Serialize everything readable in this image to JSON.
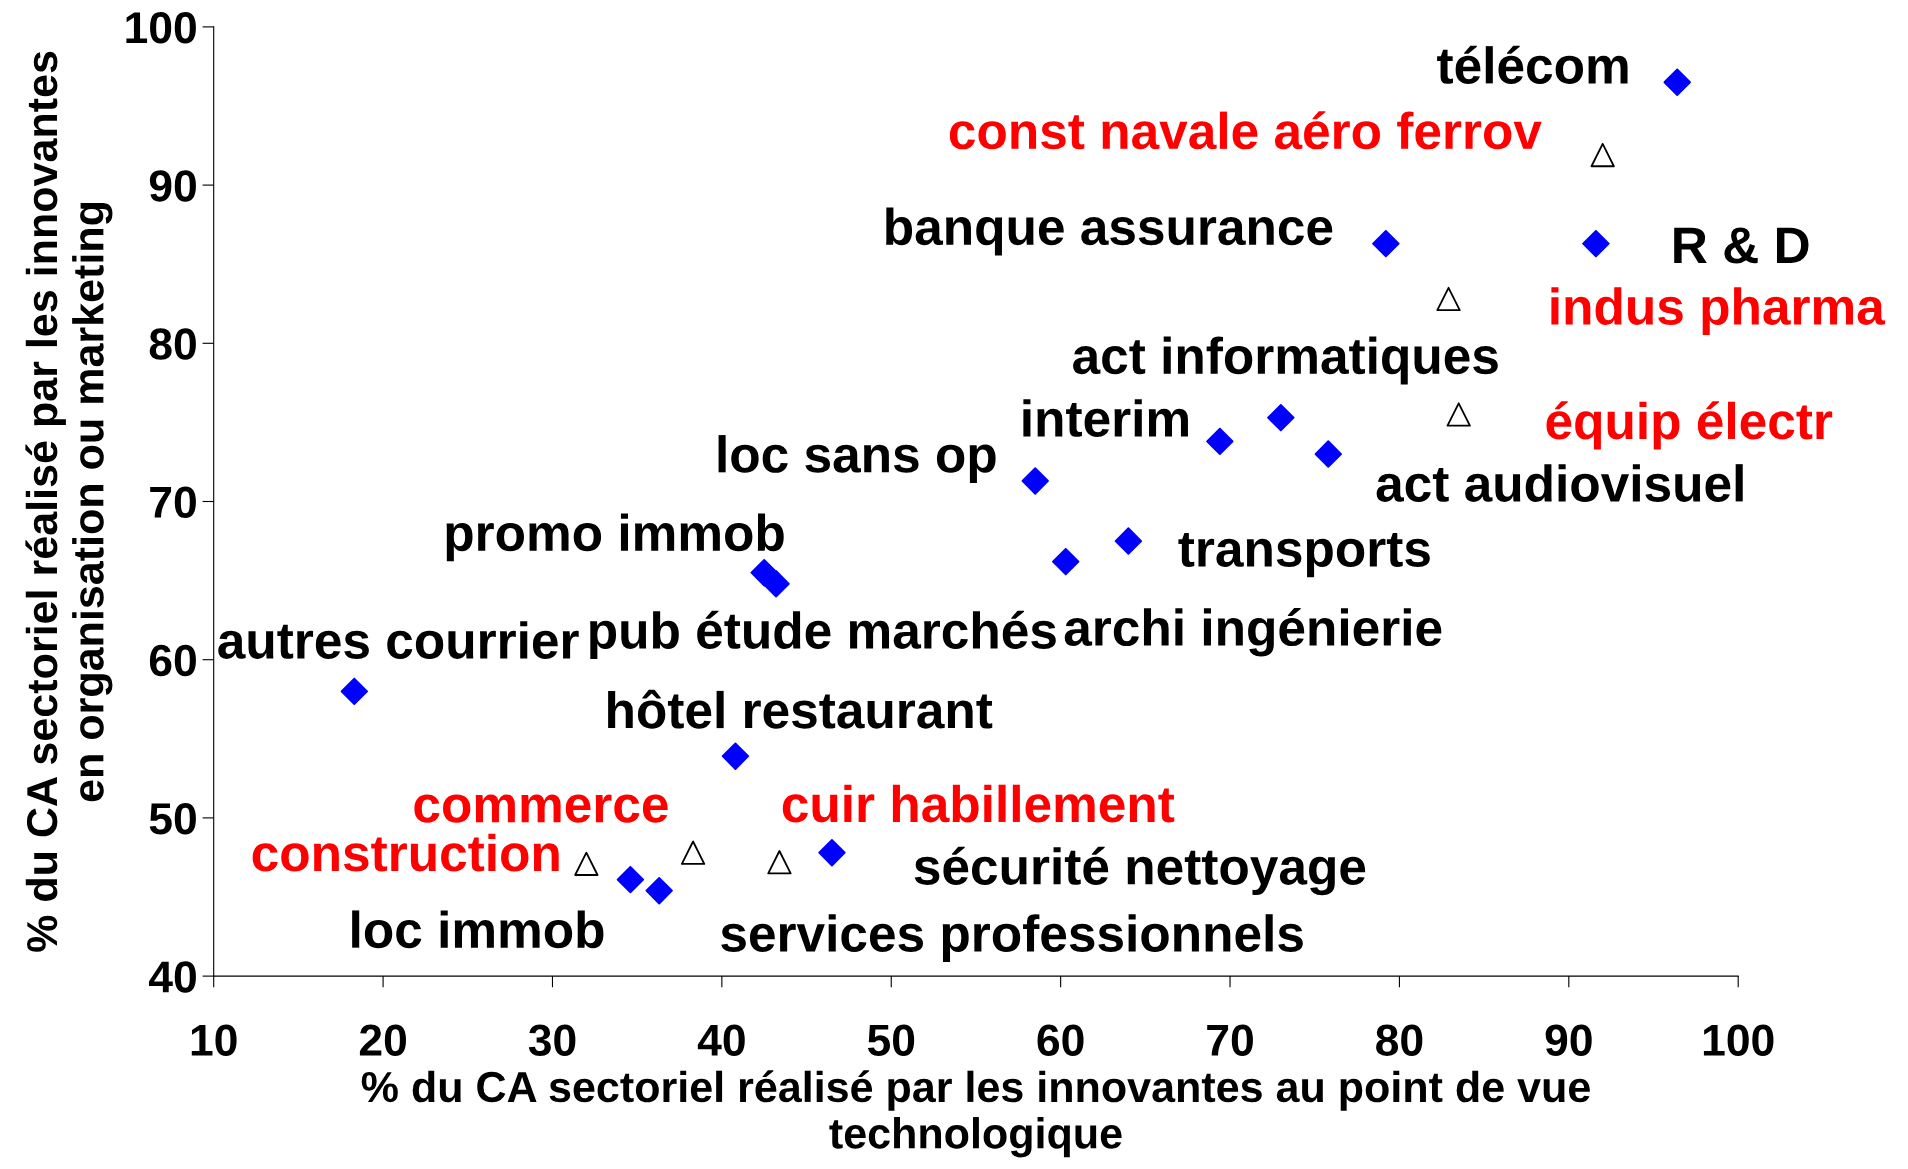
{
  "chart_data": {
    "type": "scatter",
    "xlabel": "% du CA sectoriel réalisé par les innovantes au point de vue\ntechnologique",
    "ylabel": "% du CA sectoriel réalisé par les innovantes\nen organisation ou marketing",
    "xlim": [
      10,
      100
    ],
    "xticks": [
      10,
      20,
      30,
      40,
      50,
      60,
      70,
      80,
      90,
      100
    ],
    "ylim": [
      40,
      100
    ],
    "yticks": [
      40,
      50,
      60,
      70,
      80,
      90,
      100
    ],
    "grid": false,
    "legend": false,
    "series": [
      {
        "color": "#0000ff",
        "marker": "diamond",
        "x": [
          96.4,
          79.2,
          91.6,
          73.0,
          69.4,
          75.8,
          58.5,
          64.0,
          60.3,
          42.5,
          43.2,
          18.3,
          40.8,
          46.5,
          34.6,
          36.3
        ],
        "values": [
          96.5,
          86.3,
          86.3,
          75.3,
          73.8,
          73.0,
          71.3,
          67.5,
          66.2,
          65.5,
          64.8,
          58.0,
          53.9,
          47.8,
          46.1,
          45.4
        ],
        "value_labels": [
          "télécom",
          "banque assurance",
          "R & D",
          "act informatiques",
          "interim",
          "act audiovisuel",
          "loc sans op",
          "transports",
          "archi ingénierie",
          "promo immob",
          "pub étude marchés",
          "autres courrier",
          "hôtel restaurant",
          "sécurité nettoyage",
          "loc immob",
          "services professionnels"
        ]
      },
      {
        "color": "#000000",
        "marker": "triangle",
        "x": [
          92.0,
          82.9,
          83.5,
          32.0,
          38.3,
          43.4
        ],
        "values": [
          91.9,
          82.8,
          75.5,
          47.1,
          47.8,
          47.2
        ],
        "value_labels": [
          "const navale aéro ferrov",
          "indus pharma",
          "équip électr",
          "construction",
          "commerce",
          "cuir habillement"
        ]
      }
    ]
  }
}
